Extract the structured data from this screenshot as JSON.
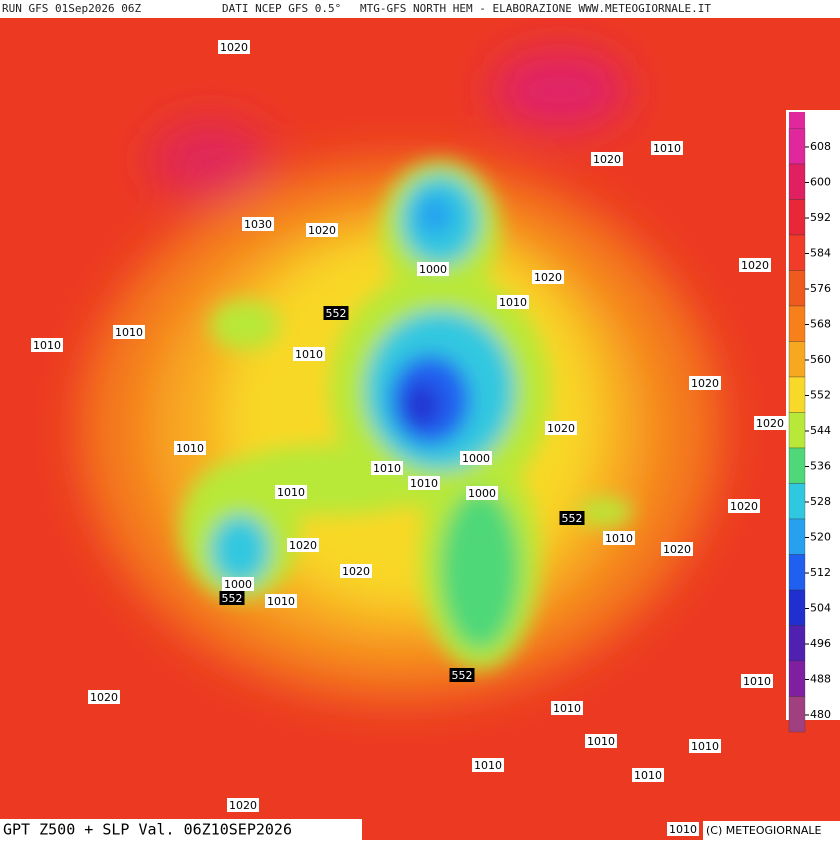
{
  "header": {
    "run": "RUN GFS 01Sep2026 06Z",
    "source": "DATI NCEP GFS 0.5°",
    "credit": "MTG-GFS NORTH HEM - ELABORAZIONE WWW.METEOGIORNALE.IT"
  },
  "footer": {
    "title": "GPT Z500 + SLP Val. 06Z10SEP2026",
    "copyright": "(C) METEOGIORNALE"
  },
  "map": {
    "labels": [
      "1020",
      "1020",
      "1010",
      "1030",
      "1020",
      "1000",
      "1020",
      "1020",
      "552",
      "1010",
      "1010",
      "1010",
      "1010",
      "1020",
      "1020",
      "1020",
      "1010",
      "1010",
      "1000",
      "1010",
      "1010",
      "1000",
      "552",
      "1020",
      "1010",
      "1020",
      "1020",
      "1020",
      "1000",
      "552",
      "1010",
      "552",
      "1020",
      "1010",
      "1010",
      "1010",
      "1010",
      "1010",
      "1010",
      "1020",
      "1010"
    ]
  },
  "colorbar": {
    "ticks": [
      608,
      600,
      592,
      584,
      576,
      568,
      560,
      552,
      544,
      536,
      528,
      520,
      512,
      504,
      496,
      488,
      480
    ],
    "colors": [
      "#e0289c",
      "#e02060",
      "#e82838",
      "#f03c28",
      "#f05a1e",
      "#f8801a",
      "#f8a820",
      "#f8d828",
      "#b8e838",
      "#50d878",
      "#30c8e0",
      "#28a0f0",
      "#2060f0",
      "#2030d0",
      "#5020b0",
      "#8020a0",
      "#a04080"
    ]
  }
}
